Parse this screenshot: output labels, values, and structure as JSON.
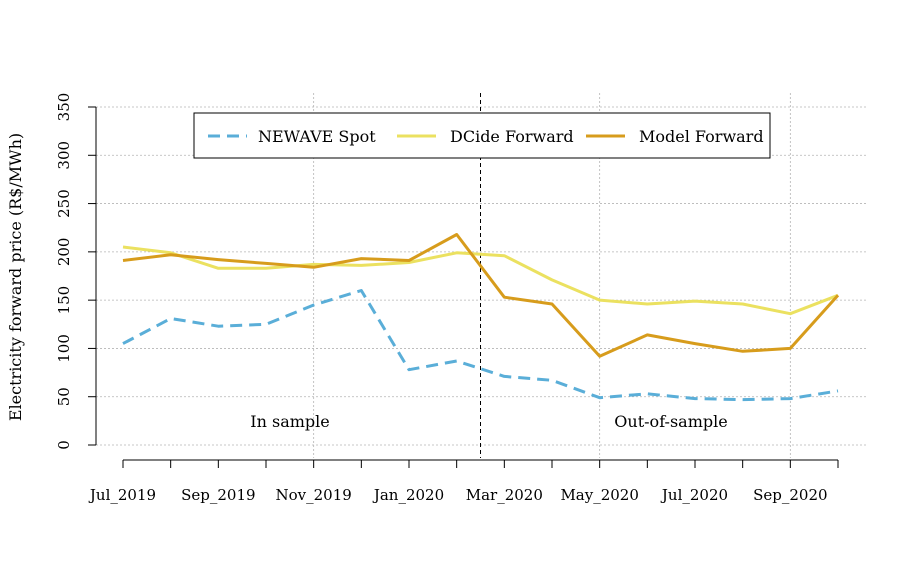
{
  "chart_data": {
    "type": "line",
    "ylabel": "Electricity forward price (R$/MWh)",
    "ylim": [
      0,
      350
    ],
    "yticks": [
      0,
      50,
      100,
      150,
      200,
      250,
      300,
      350
    ],
    "x": [
      "Jul_2019",
      "Aug_2019",
      "Sep_2019",
      "Oct_2019",
      "Nov_2019",
      "Dec_2019",
      "Jan_2020",
      "Feb_2020",
      "Mar_2020",
      "Apr_2020",
      "May_2020",
      "Jun_2020",
      "Jul_2020",
      "Aug_2020",
      "Sep_2020",
      "Oct_2020"
    ],
    "xtick_labels": [
      "Jul_2019",
      "Sep_2019",
      "Nov_2019",
      "Jan_2020",
      "Mar_2020",
      "May_2020",
      "Jul_2020",
      "Sep_2020"
    ],
    "xtick_label_positions": [
      0,
      2,
      4,
      6,
      8,
      10,
      12,
      14
    ],
    "series": [
      {
        "name": "NEWAVE Spot",
        "color": "#5aaed8",
        "dash": true,
        "values": [
          105,
          131,
          123,
          125,
          145,
          160,
          78,
          87,
          71,
          67,
          49,
          53,
          48,
          47,
          48,
          56
        ]
      },
      {
        "name": "DCide Forward",
        "color": "#ebe160",
        "dash": false,
        "values": [
          205,
          199,
          183,
          183,
          187,
          186,
          189,
          199,
          196,
          171,
          150,
          146,
          149,
          146,
          136,
          155
        ]
      },
      {
        "name": "Model Forward",
        "color": "#d79c1c",
        "dash": false,
        "values": [
          191,
          197,
          192,
          188,
          184,
          193,
          191,
          218,
          153,
          146,
          92,
          114,
          105,
          97,
          100,
          155
        ]
      }
    ],
    "divider_after": "Feb_2020",
    "annotations": {
      "left": "In sample",
      "right": "Out-of-sample"
    },
    "grid": true,
    "legend_position": "top"
  }
}
